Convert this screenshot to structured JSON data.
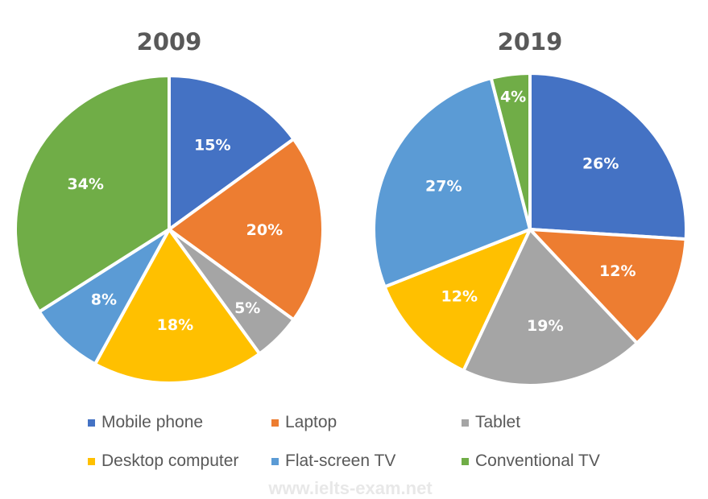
{
  "chart_data": [
    {
      "type": "pie",
      "title": "2009",
      "categories": [
        "Mobile phone",
        "Laptop",
        "Tablet",
        "Desktop computer",
        "Flat-screen TV",
        "Conventional TV"
      ],
      "values": [
        15,
        20,
        5,
        18,
        8,
        34
      ],
      "labels": [
        "15%",
        "20%",
        "5%",
        "18%",
        "8%",
        "34%"
      ]
    },
    {
      "type": "pie",
      "title": "2019",
      "categories": [
        "Mobile phone",
        "Laptop",
        "Tablet",
        "Desktop computer",
        "Flat-screen TV",
        "Conventional TV"
      ],
      "values": [
        26,
        12,
        19,
        12,
        27,
        4
      ],
      "labels": [
        "26%",
        "12%",
        "19%",
        "12%",
        "27%",
        "4%"
      ]
    }
  ],
  "legend": {
    "position": "bottom",
    "items": [
      {
        "label": "Mobile phone",
        "color": "#4472c4"
      },
      {
        "label": "Laptop",
        "color": "#ed7d31"
      },
      {
        "label": "Tablet",
        "color": "#a5a5a5"
      },
      {
        "label": "Desktop computer",
        "color": "#ffc000"
      },
      {
        "label": "Flat-screen TV",
        "color": "#5b9bd5"
      },
      {
        "label": "Conventional TV",
        "color": "#70ad47"
      }
    ]
  },
  "watermark": "www.ielts-exam.net"
}
